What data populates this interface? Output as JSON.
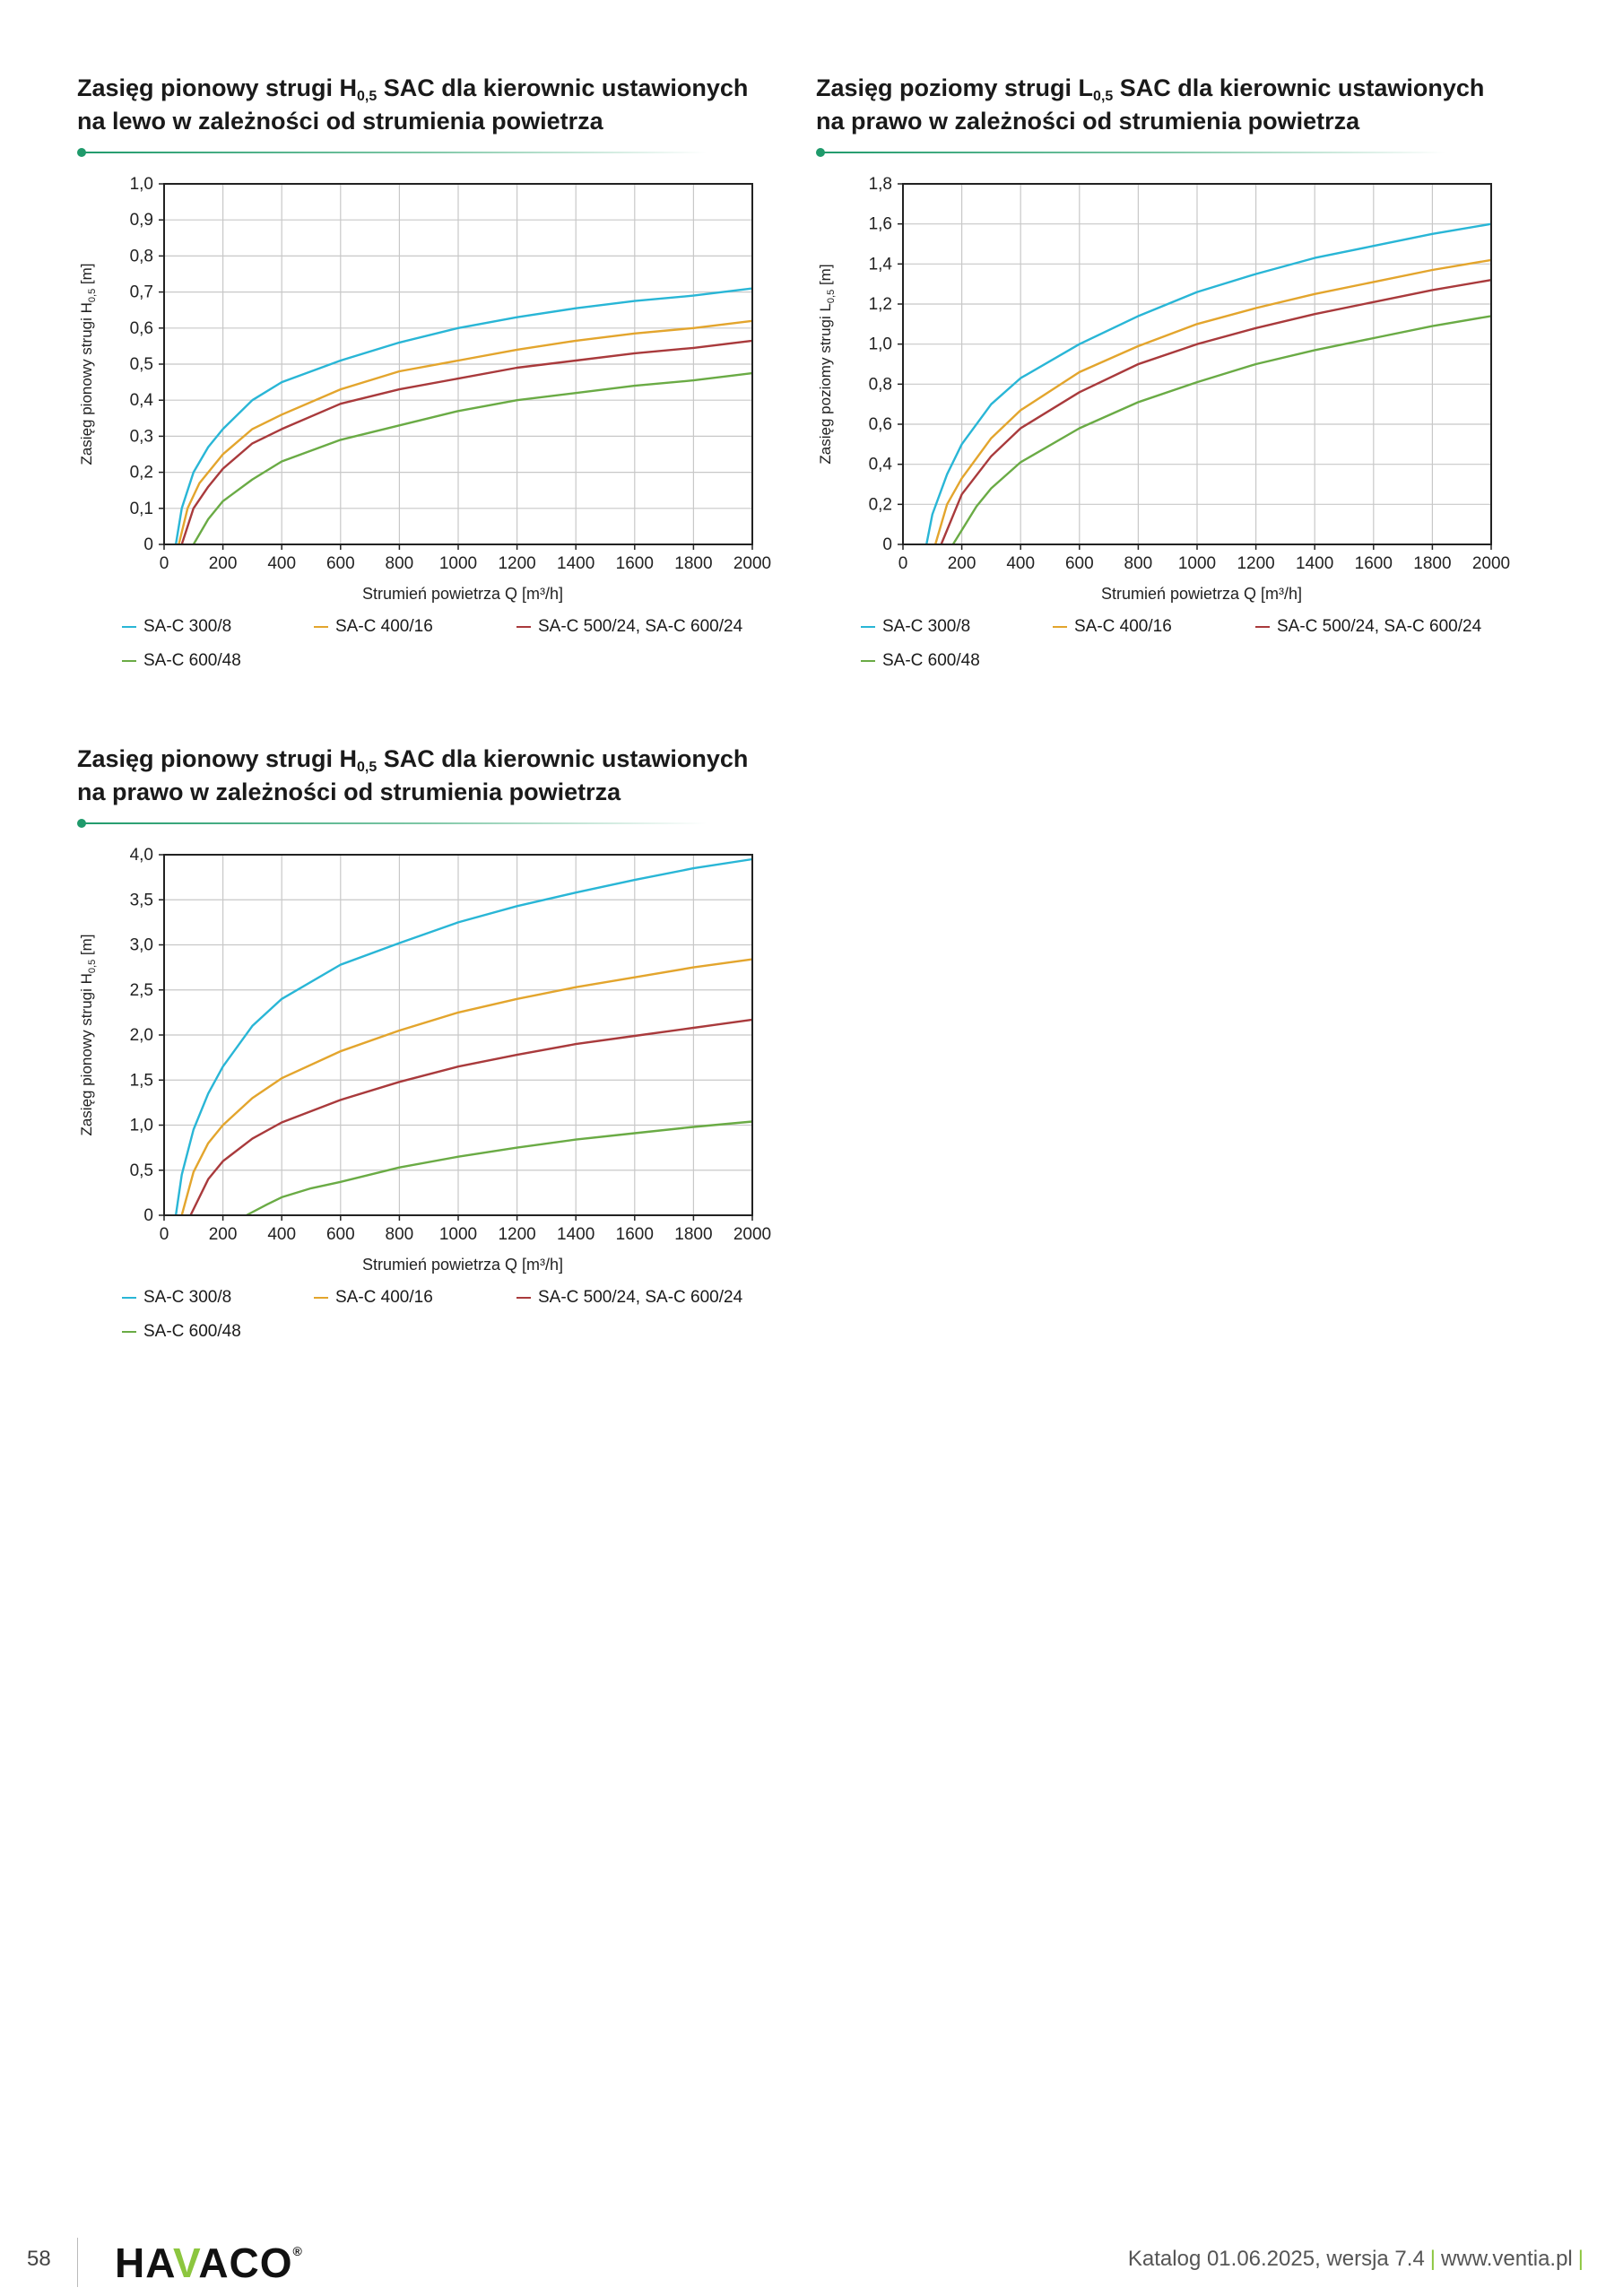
{
  "colors": {
    "cyan": "#29b6d6",
    "orange": "#e3a52d",
    "red": "#a93a3c",
    "green": "#6aab45",
    "accent": "#1f9a6b"
  },
  "legend_labels": [
    "SA-C 300/8",
    "SA-C 400/16",
    "SA-C 500/24,  SA-C 600/24",
    "SA-C 600/48"
  ],
  "chart_data": [
    {
      "type": "line",
      "title_line1_a": "Zasięg pionowy strugi H",
      "title_sub": "0,5",
      "title_line1_b": " SAC dla kierownic ustawionych",
      "title_line2": "na lewo w zależności od strumienia powietrza",
      "xlabel": "Strumień powietrza Q [m³/h]",
      "ylabel_a": "Zasięg pionowy strugi H",
      "ylabel_sub": "0,5",
      "ylabel_b": " [m]",
      "xlim": [
        0,
        2000
      ],
      "ylim": [
        0,
        1.0
      ],
      "xticks": [
        0,
        200,
        400,
        600,
        800,
        1000,
        1200,
        1400,
        1600,
        1800,
        2000
      ],
      "xtick_labels": [
        "0",
        "200",
        "400",
        "600",
        "800",
        "1000",
        "1200",
        "1400",
        "1600",
        "1800",
        "2000"
      ],
      "yticks": [
        0,
        0.1,
        0.2,
        0.3,
        0.4,
        0.5,
        0.6,
        0.7,
        0.8,
        0.9,
        1.0
      ],
      "ytick_labels": [
        "0",
        "0,1",
        "0,2",
        "0,3",
        "0,4",
        "0,5",
        "0,6",
        "0,7",
        "0,8",
        "0,9",
        "1,0"
      ],
      "grid": true,
      "legend_position": "bottom",
      "series": [
        {
          "name": "SA-C 300/8",
          "color": "#29b6d6",
          "x": [
            40,
            60,
            100,
            150,
            200,
            300,
            400,
            600,
            800,
            1000,
            1200,
            1400,
            1600,
            1800,
            2000
          ],
          "y": [
            0.0,
            0.1,
            0.2,
            0.27,
            0.32,
            0.4,
            0.45,
            0.51,
            0.56,
            0.6,
            0.63,
            0.655,
            0.675,
            0.69,
            0.71
          ]
        },
        {
          "name": "SA-C 400/16",
          "color": "#e3a52d",
          "x": [
            50,
            80,
            120,
            200,
            300,
            400,
            600,
            800,
            1000,
            1200,
            1400,
            1600,
            1800,
            2000
          ],
          "y": [
            0.0,
            0.1,
            0.17,
            0.25,
            0.32,
            0.36,
            0.43,
            0.48,
            0.51,
            0.54,
            0.565,
            0.585,
            0.6,
            0.62
          ]
        },
        {
          "name": "SA-C 500/24,  SA-C 600/24",
          "color": "#a93a3c",
          "x": [
            60,
            100,
            150,
            200,
            300,
            400,
            600,
            800,
            1000,
            1200,
            1400,
            1600,
            1800,
            2000
          ],
          "y": [
            0.0,
            0.1,
            0.16,
            0.21,
            0.28,
            0.32,
            0.39,
            0.43,
            0.46,
            0.49,
            0.51,
            0.53,
            0.545,
            0.565
          ]
        },
        {
          "name": "SA-C 600/48",
          "color": "#6aab45",
          "x": [
            100,
            150,
            200,
            300,
            400,
            600,
            800,
            1000,
            1200,
            1400,
            1600,
            1800,
            2000
          ],
          "y": [
            0.0,
            0.07,
            0.12,
            0.18,
            0.23,
            0.29,
            0.33,
            0.37,
            0.4,
            0.42,
            0.44,
            0.455,
            0.475
          ]
        }
      ]
    },
    {
      "type": "line",
      "title_line1_a": "Zasięg poziomy strugi L",
      "title_sub": "0,5",
      "title_line1_b": " SAC dla kierownic ustawionych",
      "title_line2": "na prawo w zależności od strumienia powietrza",
      "xlabel": "Strumień powietrza Q [m³/h]",
      "ylabel_a": "Zasięg poziomy strugi L",
      "ylabel_sub": "0,5",
      "ylabel_b": " [m]",
      "xlim": [
        0,
        2000
      ],
      "ylim": [
        0,
        1.8
      ],
      "xticks": [
        0,
        200,
        400,
        600,
        800,
        1000,
        1200,
        1400,
        1600,
        1800,
        2000
      ],
      "xtick_labels": [
        "0",
        "200",
        "400",
        "600",
        "800",
        "1000",
        "1200",
        "1400",
        "1600",
        "1800",
        "2000"
      ],
      "yticks": [
        0,
        0.2,
        0.4,
        0.6,
        0.8,
        1.0,
        1.2,
        1.4,
        1.6,
        1.8
      ],
      "ytick_labels": [
        "0",
        "0,2",
        "0,4",
        "0,6",
        "0,8",
        "1,0",
        "1,2",
        "1,4",
        "1,6",
        "1,8"
      ],
      "grid": true,
      "legend_position": "bottom",
      "series": [
        {
          "name": "SA-C 300/8",
          "color": "#29b6d6",
          "x": [
            80,
            100,
            150,
            200,
            300,
            400,
            600,
            800,
            1000,
            1200,
            1400,
            1600,
            1800,
            2000
          ],
          "y": [
            0.0,
            0.15,
            0.35,
            0.5,
            0.7,
            0.83,
            1.0,
            1.14,
            1.26,
            1.35,
            1.43,
            1.49,
            1.55,
            1.6
          ]
        },
        {
          "name": "SA-C 400/16",
          "color": "#e3a52d",
          "x": [
            110,
            150,
            200,
            300,
            400,
            600,
            800,
            1000,
            1200,
            1400,
            1600,
            1800,
            2000
          ],
          "y": [
            0.0,
            0.2,
            0.33,
            0.53,
            0.67,
            0.86,
            0.99,
            1.1,
            1.18,
            1.25,
            1.31,
            1.37,
            1.42
          ]
        },
        {
          "name": "SA-C 500/24,  SA-C 600/24",
          "color": "#a93a3c",
          "x": [
            130,
            200,
            300,
            400,
            600,
            800,
            1000,
            1200,
            1400,
            1600,
            1800,
            2000
          ],
          "y": [
            0.0,
            0.25,
            0.44,
            0.58,
            0.76,
            0.9,
            1.0,
            1.08,
            1.15,
            1.21,
            1.27,
            1.32
          ]
        },
        {
          "name": "SA-C 600/48",
          "color": "#6aab45",
          "x": [
            170,
            250,
            300,
            400,
            600,
            800,
            1000,
            1200,
            1400,
            1600,
            1800,
            2000
          ],
          "y": [
            0.0,
            0.19,
            0.28,
            0.41,
            0.58,
            0.71,
            0.81,
            0.9,
            0.97,
            1.03,
            1.09,
            1.14
          ]
        }
      ]
    },
    {
      "type": "line",
      "title_line1_a": "Zasięg pionowy strugi H",
      "title_sub": "0,5",
      "title_line1_b": " SAC dla kierownic ustawionych",
      "title_line2": "na prawo w zależności od strumienia powietrza",
      "xlabel": "Strumień powietrza Q [m³/h]",
      "ylabel_a": "Zasięg pionowy strugi H",
      "ylabel_sub": "0,5",
      "ylabel_b": " [m]",
      "xlim": [
        0,
        2000
      ],
      "ylim": [
        0,
        4.0
      ],
      "xticks": [
        0,
        200,
        400,
        600,
        800,
        1000,
        1200,
        1400,
        1600,
        1800,
        2000
      ],
      "xtick_labels": [
        "0",
        "200",
        "400",
        "600",
        "800",
        "1000",
        "1200",
        "1400",
        "1600",
        "1800",
        "2000"
      ],
      "yticks": [
        0,
        0.5,
        1.0,
        1.5,
        2.0,
        2.5,
        3.0,
        3.5,
        4.0
      ],
      "ytick_labels": [
        "0",
        "0,5",
        "1,0",
        "1,5",
        "2,0",
        "2,5",
        "3,0",
        "3,5",
        "4,0"
      ],
      "grid": true,
      "legend_position": "bottom",
      "series": [
        {
          "name": "SA-C 300/8",
          "color": "#29b6d6",
          "x": [
            40,
            60,
            100,
            150,
            200,
            300,
            400,
            600,
            800,
            1000,
            1200,
            1400,
            1600,
            1800,
            2000
          ],
          "y": [
            0.0,
            0.45,
            0.95,
            1.35,
            1.65,
            2.1,
            2.4,
            2.78,
            3.02,
            3.25,
            3.43,
            3.58,
            3.72,
            3.85,
            3.95
          ]
        },
        {
          "name": "SA-C 400/16",
          "color": "#e3a52d",
          "x": [
            60,
            100,
            150,
            200,
            300,
            400,
            600,
            800,
            1000,
            1200,
            1400,
            1600,
            1800,
            2000
          ],
          "y": [
            0.0,
            0.48,
            0.8,
            1.0,
            1.3,
            1.52,
            1.82,
            2.05,
            2.25,
            2.4,
            2.53,
            2.64,
            2.75,
            2.84
          ]
        },
        {
          "name": "SA-C 500/24,  SA-C 600/24",
          "color": "#a93a3c",
          "x": [
            90,
            150,
            200,
            300,
            400,
            600,
            800,
            1000,
            1200,
            1400,
            1600,
            1800,
            2000
          ],
          "y": [
            0.0,
            0.4,
            0.6,
            0.85,
            1.03,
            1.28,
            1.48,
            1.65,
            1.78,
            1.9,
            1.99,
            2.08,
            2.17
          ]
        },
        {
          "name": "SA-C 600/48",
          "color": "#6aab45",
          "x": [
            280,
            350,
            400,
            500,
            600,
            800,
            1000,
            1200,
            1400,
            1600,
            1800,
            2000
          ],
          "y": [
            0.0,
            0.12,
            0.2,
            0.3,
            0.37,
            0.53,
            0.65,
            0.75,
            0.84,
            0.91,
            0.98,
            1.04
          ]
        }
      ]
    }
  ],
  "footer": {
    "page_number": "58",
    "logo_a": "HA",
    "logo_v": "V",
    "logo_b": "ACO",
    "logo_mark": "®",
    "catalog_text": "Katalog 01.06.2025, wersja 7.4",
    "separator": "|",
    "website": "www.ventia.pl"
  }
}
